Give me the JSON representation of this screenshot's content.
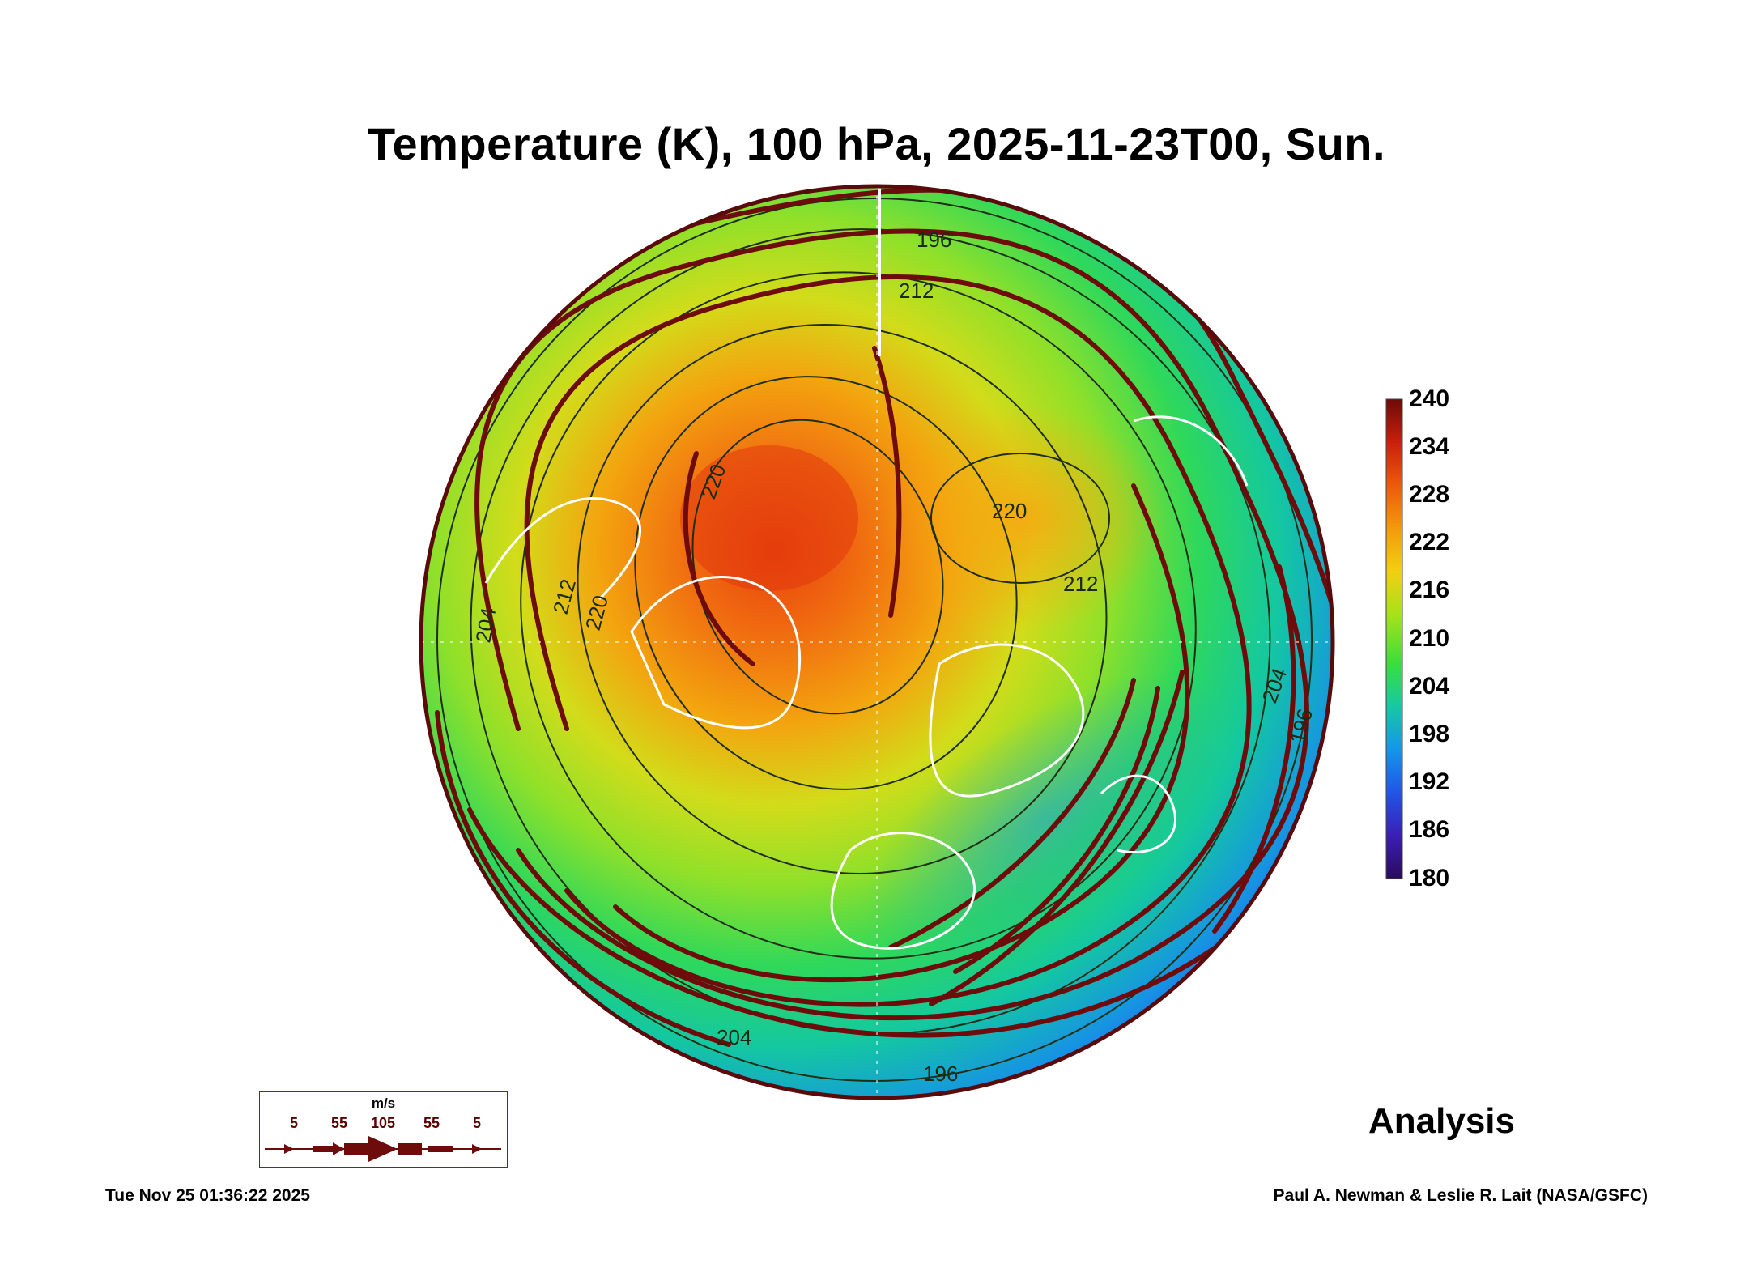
{
  "title": "Temperature (K), 100 hPa, 2025-11-23T00, Sun.",
  "colorbar": {
    "labels": [
      "240",
      "234",
      "228",
      "222",
      "216",
      "210",
      "204",
      "198",
      "192",
      "186",
      "180"
    ],
    "min": 180,
    "max": 240,
    "colors": [
      "#2a0a5e",
      "#3b1fb5",
      "#2156e6",
      "#1596e8",
      "#16c9a3",
      "#3cde3c",
      "#a6e21a",
      "#f2cf12",
      "#f39a0c",
      "#ec5a0c",
      "#c8200c",
      "#6d0a0a"
    ]
  },
  "contour_labels": [
    "196",
    "212",
    "220",
    "212",
    "220",
    "212",
    "204",
    "204",
    "196",
    "204",
    "196",
    "220"
  ],
  "wind_legend": {
    "unit": "m/s",
    "ticks": [
      "5",
      "55",
      "105",
      "55",
      "5"
    ],
    "color": "#6e0c0c"
  },
  "analysis_label": "Analysis",
  "timestamp": "Tue Nov 25 01:36:22 2025",
  "credit": "Paul A. Newman & Leslie R. Lait (NASA/GSFC)"
}
